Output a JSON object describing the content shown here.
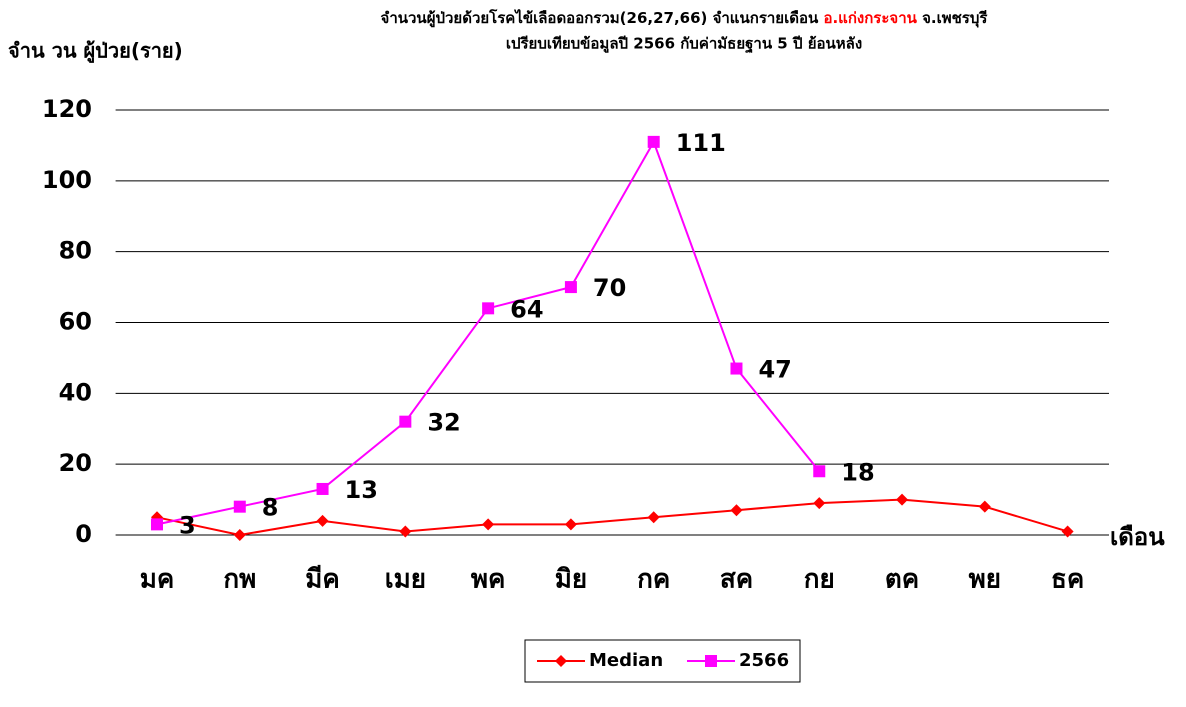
{
  "chart_data": {
    "type": "line",
    "title_prefix": "จำนวนผู้ป่วยด้วยโรคไข้เลือดออกรวม(26,27,66) จำแนกรายเดือน ",
    "title_highlight": "อ.แก่งกระจาน",
    "title_suffix": " จ.เพชรบุรี",
    "subtitle": "เปรียบเทียบข้อมูลปี 2566 กับค่ามัธยฐาน 5 ปี ย้อนหลัง",
    "y_label": "จำน วน ผู้ป่วย(ราย)",
    "x_label": "เดือน",
    "categories": [
      "มค",
      "กพ",
      "มีค",
      "เมย",
      "พค",
      "มิย",
      "กค",
      "สค",
      "กย",
      "ตค",
      "พย",
      "ธค"
    ],
    "series": [
      {
        "name": "Median",
        "color": "#ff0000",
        "marker": "diamond",
        "values": [
          5,
          0,
          4,
          1,
          3,
          3,
          5,
          7,
          9,
          10,
          8,
          1
        ]
      },
      {
        "name": "2566",
        "color": "#ff00ff",
        "marker": "square",
        "data_labels": true,
        "values": [
          3,
          8,
          13,
          32,
          64,
          70,
          111,
          47,
          18,
          null,
          null,
          null
        ]
      }
    ],
    "ylim": [
      0,
      120
    ],
    "yticks": [
      0,
      20,
      40,
      60,
      80,
      100,
      120
    ],
    "grid": true,
    "legend": "bottom"
  }
}
